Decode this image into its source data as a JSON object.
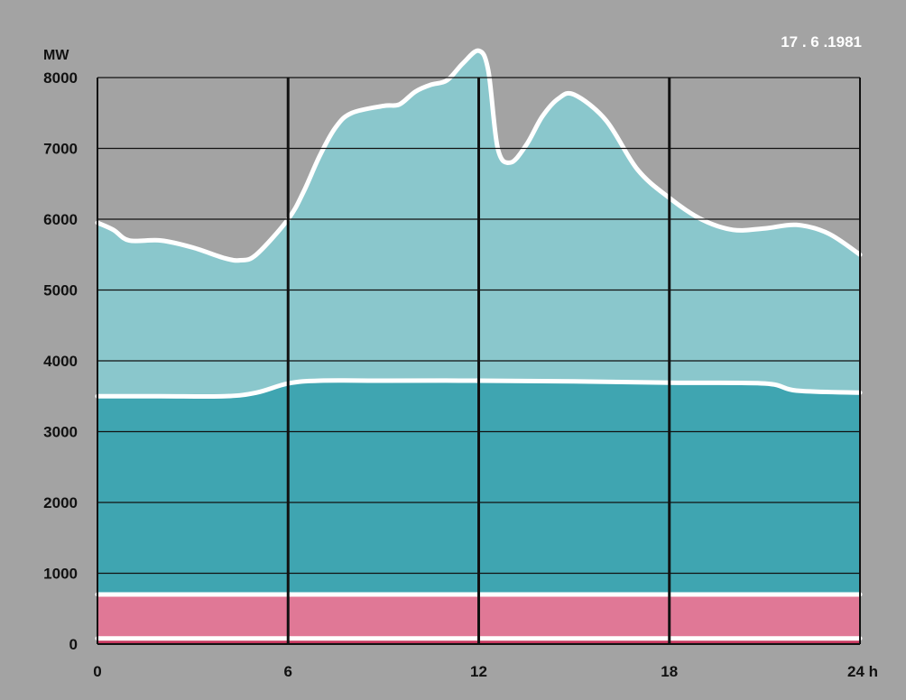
{
  "chart_data": {
    "type": "area",
    "date_label": "17 . 6 .1981",
    "y_unit_label": "MW",
    "x_unit_label": "h",
    "x_tick_labels": [
      "0",
      "6",
      "12",
      "18",
      "24"
    ],
    "y_tick_labels": [
      "0",
      "1000",
      "2000",
      "3000",
      "4000",
      "5000",
      "6000",
      "7000",
      "8000"
    ],
    "xlim": [
      0,
      24
    ],
    "ylim": [
      0,
      8000
    ],
    "grid": true,
    "colors": {
      "background": "#a3a3a3",
      "top_band": "#8ac7cc",
      "middle_band": "#3fa5b1",
      "lower_band": "#e07896",
      "bottom_band": "#c83a60",
      "separator": "#ffffff",
      "grid": "#111111"
    },
    "series": [
      {
        "band": "bottom",
        "x": [
          0,
          24
        ],
        "y": [
          80,
          80
        ]
      },
      {
        "band": "lower",
        "x": [
          0,
          24
        ],
        "y": [
          700,
          700
        ]
      },
      {
        "band": "middle",
        "x": [
          0,
          2,
          4,
          5,
          6,
          7,
          9,
          12,
          15,
          18,
          21,
          22,
          24
        ],
        "y": [
          3500,
          3500,
          3500,
          3550,
          3680,
          3720,
          3720,
          3720,
          3710,
          3690,
          3680,
          3580,
          3550
        ]
      },
      {
        "band": "top",
        "x": [
          0,
          0.5,
          1,
          2,
          3,
          4,
          4.5,
          5,
          6,
          6.5,
          7,
          7.5,
          8,
          9,
          9.5,
          10,
          10.5,
          11,
          11.5,
          12,
          12.3,
          12.6,
          13,
          13.5,
          14,
          14.5,
          15,
          16,
          17,
          18,
          19,
          20,
          21,
          22,
          23,
          24
        ],
        "y": [
          5950,
          5850,
          5700,
          5700,
          5600,
          5450,
          5420,
          5500,
          6000,
          6400,
          6900,
          7300,
          7500,
          7600,
          7620,
          7800,
          7900,
          7960,
          8200,
          8380,
          8100,
          7000,
          6800,
          7050,
          7450,
          7700,
          7760,
          7400,
          6700,
          6300,
          6000,
          5850,
          5870,
          5920,
          5800,
          5500
        ]
      }
    ]
  }
}
